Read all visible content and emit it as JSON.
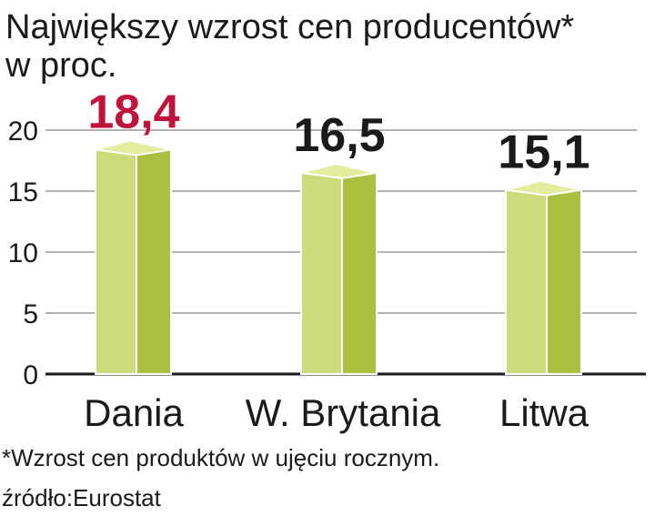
{
  "chart_data": {
    "type": "bar",
    "title": "Największy wzrost cen producentów*",
    "subtitle": "w proc.",
    "categories": [
      "Dania",
      "W. Brytania",
      "Litwa"
    ],
    "values": [
      18.4,
      16.5,
      15.1
    ],
    "value_labels": [
      "18,4",
      "16,5",
      "15,1"
    ],
    "value_label_colors": [
      "#c0143c",
      "#1a1a1a",
      "#1a1a1a"
    ],
    "color": "#cddc7a",
    "side_color": "#a9c040",
    "top_color": "#e4ec9e",
    "ylim": [
      0,
      20
    ],
    "yticks": [
      0,
      5,
      10,
      15,
      20
    ],
    "grid": true,
    "footnote": "*Wzrost cen produktów w ujęciu rocznym.",
    "source": "źródło:Eurostat"
  }
}
